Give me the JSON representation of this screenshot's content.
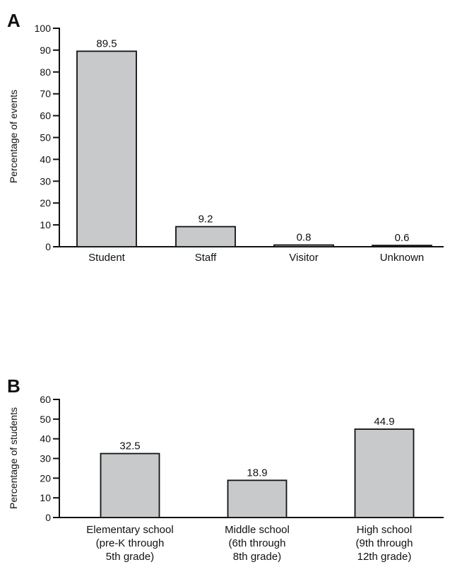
{
  "chart_data": [
    {
      "type": "bar",
      "panel": "A",
      "ylabel": "Percentage of events",
      "ylim": [
        0,
        100
      ],
      "yticks": [
        0,
        10,
        20,
        30,
        40,
        50,
        60,
        70,
        80,
        90,
        100
      ],
      "categories": [
        "Student",
        "Staff",
        "Visitor",
        "Unknown"
      ],
      "values": [
        89.5,
        9.2,
        0.8,
        0.6
      ],
      "value_labels": [
        "89.5",
        "9.2",
        "0.8",
        "0.6"
      ],
      "colors": {
        "bar": "#c8c9cb",
        "outline": "#111111"
      }
    },
    {
      "type": "bar",
      "panel": "B",
      "ylabel": "Percentage of students",
      "ylim": [
        0,
        60
      ],
      "yticks": [
        0,
        10,
        20,
        30,
        40,
        50,
        60
      ],
      "categories": [
        [
          "Elementary school",
          "(pre-K through",
          "5th grade)"
        ],
        [
          "Middle school",
          "(6th through",
          "8th grade)"
        ],
        [
          "High school",
          "(9th through",
          "12th grade)"
        ]
      ],
      "values": [
        32.5,
        18.9,
        44.9
      ],
      "value_labels": [
        "32.5",
        "18.9",
        "44.9"
      ],
      "colors": {
        "bar": "#c8c9cb",
        "outline": "#111111"
      }
    }
  ]
}
